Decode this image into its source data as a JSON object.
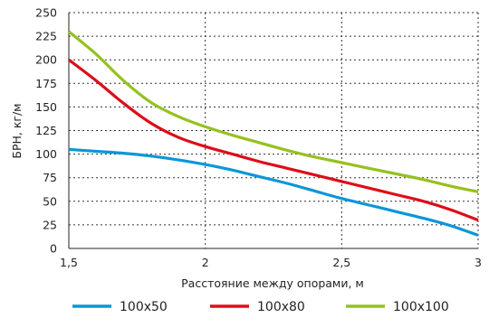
{
  "chart_data": {
    "type": "line",
    "xlabel": "Расстояние между опорами, м",
    "ylabel": "БРН, кг/м",
    "xlim": [
      1.5,
      3
    ],
    "ylim": [
      0,
      250
    ],
    "x_ticks": [
      1.5,
      2,
      2.5,
      3
    ],
    "x_tick_labels": [
      "1,5",
      "2",
      "2,5",
      "3"
    ],
    "y_ticks": [
      0,
      25,
      50,
      75,
      100,
      125,
      150,
      175,
      200,
      225,
      250
    ],
    "y_tick_labels": [
      "0",
      "25",
      "50",
      "75",
      "100",
      "125",
      "150",
      "175",
      "200",
      "225",
      "250"
    ],
    "grid": "dotted",
    "legend_position": "bottom",
    "series": [
      {
        "name": "100x50",
        "color": "#0b96d8",
        "x": [
          1.5,
          1.6,
          1.7,
          1.8,
          1.9,
          2.0,
          2.1,
          2.2,
          2.3,
          2.4,
          2.5,
          2.6,
          2.7,
          2.8,
          2.9,
          3.0
        ],
        "y": [
          105,
          103,
          101,
          98,
          94,
          89,
          83,
          76,
          69,
          61,
          53,
          46,
          39,
          32,
          24,
          14
        ]
      },
      {
        "name": "100x80",
        "color": "#dd0d19",
        "x": [
          1.5,
          1.6,
          1.7,
          1.8,
          1.9,
          2.0,
          2.1,
          2.2,
          2.3,
          2.4,
          2.5,
          2.6,
          2.7,
          2.8,
          2.9,
          3.0
        ],
        "y": [
          200,
          178,
          154,
          133,
          118,
          108,
          100,
          92,
          85,
          78,
          71,
          64,
          57,
          50,
          41,
          30
        ]
      },
      {
        "name": "100x100",
        "color": "#95c11f",
        "x": [
          1.5,
          1.6,
          1.7,
          1.8,
          1.9,
          2.0,
          2.1,
          2.2,
          2.3,
          2.4,
          2.5,
          2.6,
          2.7,
          2.8,
          2.9,
          3.0
        ],
        "y": [
          230,
          206,
          178,
          155,
          140,
          129,
          120,
          112,
          104,
          97,
          91,
          85,
          79,
          73,
          66,
          60
        ]
      }
    ]
  }
}
